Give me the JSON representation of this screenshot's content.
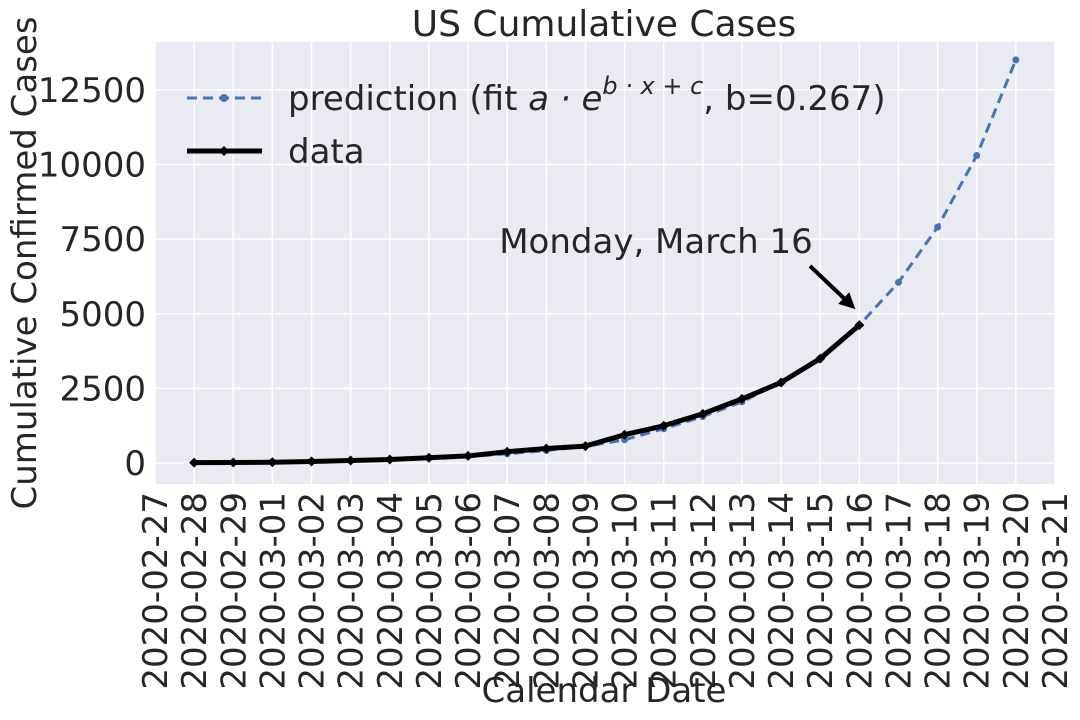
{
  "chart_data": {
    "type": "line",
    "title": "US Cumulative Cases",
    "xlabel": "Calendar Date",
    "ylabel": "Cumulative Confirmed Cases",
    "x_ticks": [
      "2020-02-27",
      "2020-02-28",
      "2020-02-29",
      "2020-03-01",
      "2020-03-02",
      "2020-03-03",
      "2020-03-04",
      "2020-03-05",
      "2020-03-06",
      "2020-03-07",
      "2020-03-08",
      "2020-03-09",
      "2020-03-10",
      "2020-03-11",
      "2020-03-12",
      "2020-03-13",
      "2020-03-14",
      "2020-03-15",
      "2020-03-16",
      "2020-03-17",
      "2020-03-18",
      "2020-03-19",
      "2020-03-20",
      "2020-03-21"
    ],
    "y_ticks": [
      0,
      2500,
      5000,
      7500,
      10000,
      12500
    ],
    "y_tick_labels": [
      "0",
      "2500",
      "5000",
      "7500",
      "10000",
      "12500"
    ],
    "ylim": [
      -700,
      14100
    ],
    "xlim": [
      "2020-02-27",
      "2020-03-21"
    ],
    "grid": true,
    "legend_position": "top-left",
    "colors": {
      "background": "#eaeaf2",
      "grid": "#ffffff",
      "prediction": "#4c72b0",
      "data": "#000000"
    },
    "series": [
      {
        "name": "prediction",
        "legend_prefix": "prediction (fit ",
        "legend_formula_base": "a · e",
        "legend_formula_exp": "b · x + c",
        "legend_suffix": ", b=0.267)",
        "style": "dashed",
        "x": [
          "2020-02-28",
          "2020-02-29",
          "2020-03-01",
          "2020-03-02",
          "2020-03-03",
          "2020-03-04",
          "2020-03-05",
          "2020-03-06",
          "2020-03-07",
          "2020-03-08",
          "2020-03-09",
          "2020-03-10",
          "2020-03-11",
          "2020-03-12",
          "2020-03-13",
          "2020-03-14",
          "2020-03-15",
          "2020-03-16",
          "2020-03-17",
          "2020-03-18",
          "2020-03-19",
          "2020-03-20"
        ],
        "y": [
          20,
          30,
          45,
          65,
          90,
          125,
          165,
          225,
          310,
          420,
          560,
          780,
          1150,
          1560,
          2050,
          2700,
          3500,
          4620,
          6050,
          7900,
          10300,
          13500
        ]
      },
      {
        "name": "data",
        "style": "solid",
        "x": [
          "2020-02-28",
          "2020-02-29",
          "2020-03-01",
          "2020-03-02",
          "2020-03-03",
          "2020-03-04",
          "2020-03-05",
          "2020-03-06",
          "2020-03-07",
          "2020-03-08",
          "2020-03-09",
          "2020-03-10",
          "2020-03-11",
          "2020-03-12",
          "2020-03-13",
          "2020-03-14",
          "2020-03-15",
          "2020-03-16"
        ],
        "y": [
          15,
          20,
          30,
          55,
          85,
          120,
          180,
          240,
          380,
          490,
          570,
          950,
          1250,
          1650,
          2150,
          2700,
          3500,
          4620
        ]
      }
    ],
    "annotation": {
      "text": "Monday, March 16",
      "target_x": "2020-03-16",
      "target_y": 4620
    }
  }
}
